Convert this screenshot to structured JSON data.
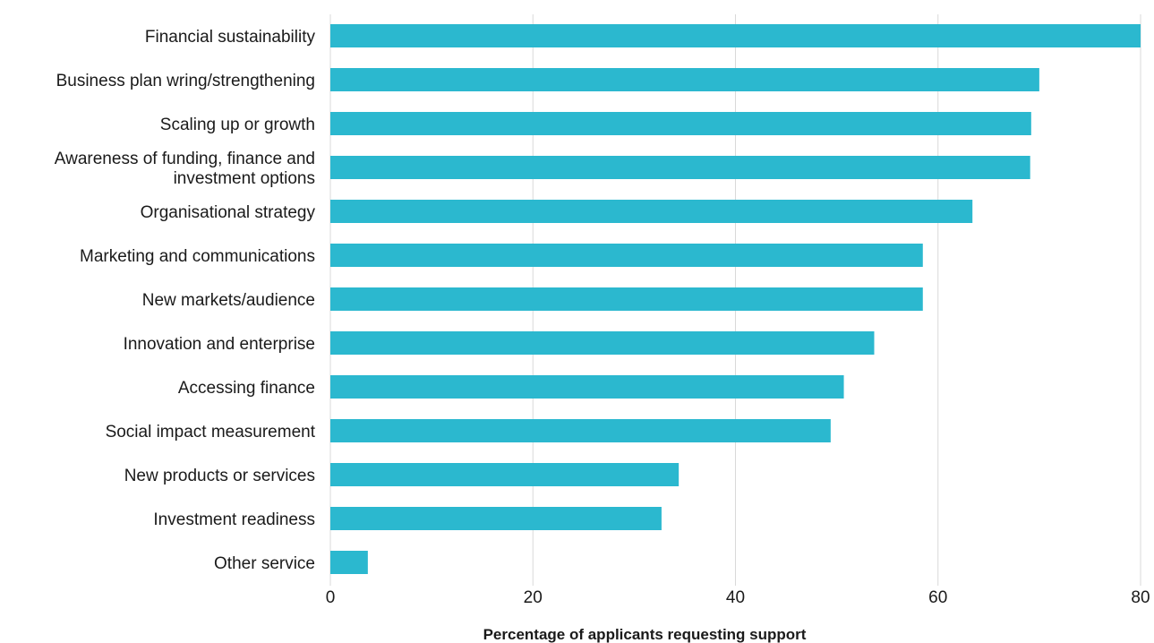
{
  "chart_data": {
    "type": "bar",
    "orientation": "horizontal",
    "categories": [
      "Financial sustainability",
      "Business plan wring/strengthening",
      "Scaling up or growth",
      "Awareness of funding, finance and investment options",
      "Organisational strategy",
      "Marketing and communications",
      "New markets/audience",
      "Innovation and enterprise",
      "Accessing finance",
      "Social impact measurement",
      "New products or services",
      "Investment readiness",
      "Other service"
    ],
    "category_lines": [
      [
        "Financial sustainability"
      ],
      [
        "Business plan wring/strengthening"
      ],
      [
        "Scaling up or growth"
      ],
      [
        "Awareness of funding, finance and",
        "investment options"
      ],
      [
        "Organisational strategy"
      ],
      [
        "Marketing and communications"
      ],
      [
        "New markets/audience"
      ],
      [
        "Innovation and enterprise"
      ],
      [
        "Accessing finance"
      ],
      [
        "Social impact measurement"
      ],
      [
        "New products or services"
      ],
      [
        "Investment readiness"
      ],
      [
        "Other service"
      ]
    ],
    "values": [
      80,
      70,
      69.2,
      69.1,
      63.4,
      58.5,
      58.5,
      53.7,
      50.7,
      49.4,
      34.4,
      32.7,
      3.7
    ],
    "xlabel": "Percentage of applicants requesting support",
    "ylabel": "",
    "xlim": [
      0,
      80
    ],
    "xticks": [
      0,
      20,
      40,
      60,
      80
    ],
    "xtick_labels": [
      "0",
      "20",
      "40",
      "60",
      "80"
    ],
    "grid": "vertical",
    "legend": "none",
    "bar_color": "#2bb8cf"
  }
}
